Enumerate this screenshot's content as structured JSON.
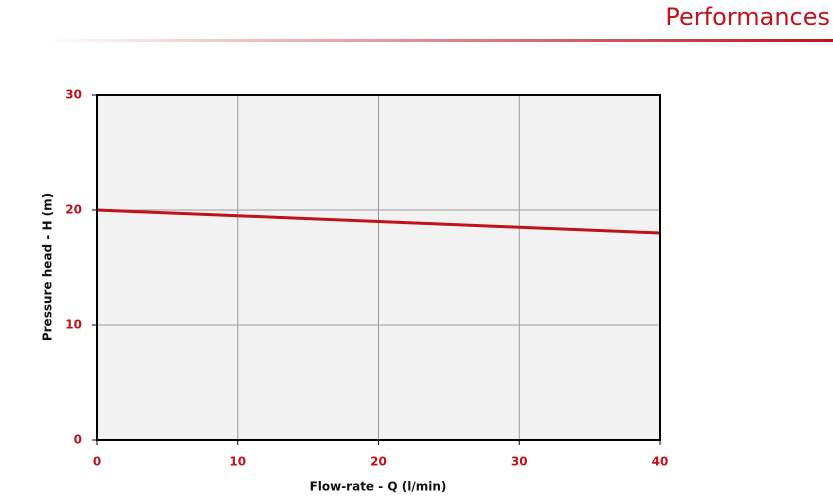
{
  "header": {
    "title": "Performances"
  },
  "chart_data": {
    "type": "line",
    "xlabel": "Flow-rate - Q (l/min)",
    "ylabel": "Pressure head - H (m)",
    "x": [
      0,
      5,
      10,
      15,
      20,
      25,
      30,
      35,
      40
    ],
    "series": [
      {
        "color": "#c0121b",
        "values": [
          20,
          19.75,
          19.5,
          19.25,
          19.0,
          18.75,
          18.5,
          18.25,
          18.0
        ]
      }
    ],
    "xlim": [
      0,
      40
    ],
    "xticks": [
      0,
      10,
      20,
      30,
      40
    ],
    "ylim": [
      0,
      30
    ],
    "yticks": [
      0,
      10,
      20,
      30
    ],
    "grid": true
  }
}
